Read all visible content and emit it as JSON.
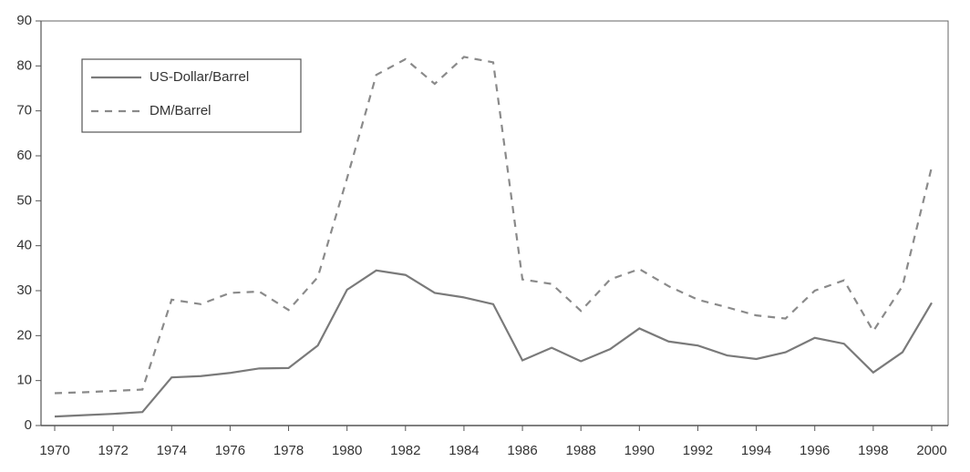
{
  "chart_data": {
    "type": "line",
    "x": [
      1970,
      1971,
      1972,
      1973,
      1974,
      1975,
      1976,
      1977,
      1978,
      1979,
      1980,
      1981,
      1982,
      1983,
      1984,
      1985,
      1986,
      1987,
      1988,
      1989,
      1990,
      1991,
      1992,
      1993,
      1994,
      1995,
      1996,
      1997,
      1998,
      1999,
      2000
    ],
    "series": [
      {
        "name": "US-Dollar/Barrel",
        "color": "#7a7a7a",
        "dash": "solid",
        "values": [
          2,
          2.3,
          2.6,
          3,
          10.7,
          11,
          11.7,
          12.7,
          12.8,
          17.8,
          30.2,
          34.5,
          33.5,
          29.5,
          28.5,
          27,
          14.5,
          17.3,
          14.3,
          17,
          21.6,
          18.7,
          17.8,
          15.6,
          14.8,
          16.3,
          19.5,
          18.2,
          11.8,
          16.3,
          27.3
        ]
      },
      {
        "name": "DM/Barrel",
        "color": "#8a8a8a",
        "dash": "dashed",
        "values": [
          7.2,
          7.4,
          7.7,
          8,
          28,
          27,
          29.5,
          29.8,
          25.7,
          33,
          55,
          78,
          81.5,
          76,
          82,
          80.8,
          32.5,
          31.5,
          25.5,
          32.5,
          34.8,
          31,
          28,
          26.3,
          24.5,
          23.8,
          30,
          32.3,
          21,
          31,
          57.5
        ]
      }
    ],
    "xlim": [
      1970,
      2000
    ],
    "xticks": [
      1970,
      1972,
      1974,
      1976,
      1978,
      1980,
      1982,
      1984,
      1986,
      1988,
      1990,
      1992,
      1994,
      1996,
      1998,
      2000
    ],
    "ylim": [
      0,
      90
    ],
    "yticks": [
      0,
      10,
      20,
      30,
      40,
      50,
      60,
      70,
      80,
      90
    ],
    "legend": "upper left"
  }
}
